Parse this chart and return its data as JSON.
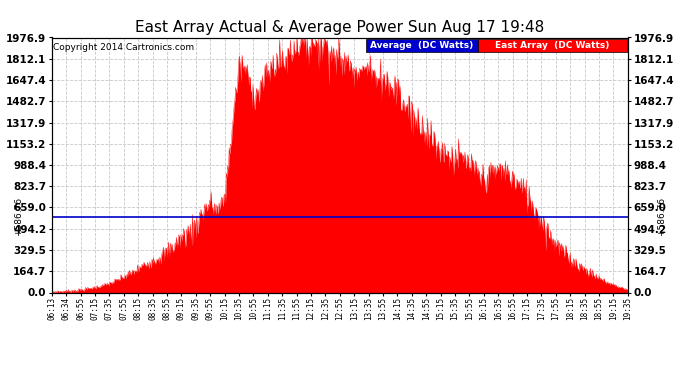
{
  "title": "East Array Actual & Average Power Sun Aug 17 19:48",
  "copyright": "Copyright 2014 Cartronics.com",
  "yticks": [
    0.0,
    164.7,
    329.5,
    494.2,
    659.0,
    823.7,
    988.4,
    1153.2,
    1317.9,
    1482.7,
    1647.4,
    1812.1,
    1976.9
  ],
  "ymax": 1976.9,
  "ymin": 0.0,
  "average_line_y": 586.76,
  "legend_avg_label": "Average  (DC Watts)",
  "legend_east_label": "East Array  (DC Watts)",
  "bg_color": "#ffffff",
  "grid_color": "#c8c8c8",
  "fill_color": "#ff0000",
  "avg_line_color": "#0000cc",
  "title_color": "#000000",
  "x_times": [
    "06:13",
    "06:34",
    "06:55",
    "07:15",
    "07:35",
    "07:55",
    "08:15",
    "08:35",
    "08:55",
    "09:15",
    "09:35",
    "09:55",
    "10:15",
    "10:35",
    "10:55",
    "11:15",
    "11:35",
    "11:55",
    "12:15",
    "12:35",
    "12:55",
    "13:15",
    "13:35",
    "13:55",
    "14:15",
    "14:35",
    "14:55",
    "15:15",
    "15:35",
    "15:55",
    "16:15",
    "16:35",
    "16:55",
    "17:15",
    "17:35",
    "17:55",
    "18:15",
    "18:35",
    "18:55",
    "19:15",
    "19:35"
  ]
}
